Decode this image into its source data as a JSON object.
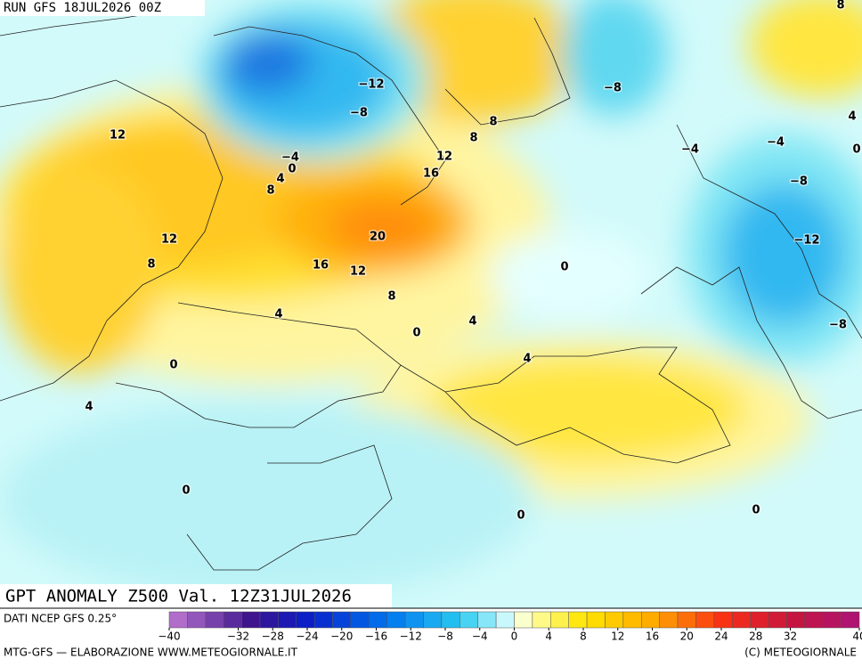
{
  "header": {
    "run": "RUN GFS 18JUL2026 00Z",
    "title": "GPT ANOMALY Z500 Val. 12Z31JUL2026"
  },
  "footer": {
    "source": "DATI NCEP GFS 0.25°",
    "credit": "MTG-GFS — ELABORAZIONE WWW.METEOGIORNALE.IT",
    "copyright": "(C) METEOGIORNALE"
  },
  "contour_labels": [
    "12",
    "−12",
    "−8",
    "−4",
    "0",
    "4",
    "8",
    "8",
    "8",
    "12",
    "16",
    "20",
    "12",
    "8",
    "16",
    "12",
    "8",
    "4",
    "4",
    "0",
    "0",
    "4",
    "0",
    "4",
    "0",
    "0",
    "0",
    "−8",
    "−4",
    "−4",
    "−8",
    "−12",
    "−8",
    "4",
    "8",
    "0"
  ],
  "colorbar": {
    "range": [
      -40,
      40
    ],
    "ticks": [
      {
        "value": -40,
        "label": "−40"
      },
      {
        "value": -32,
        "label": "−32"
      },
      {
        "value": -28,
        "label": "−28"
      },
      {
        "value": -24,
        "label": "−24"
      },
      {
        "value": -20,
        "label": "−20"
      },
      {
        "value": -16,
        "label": "−16"
      },
      {
        "value": -12,
        "label": "−12"
      },
      {
        "value": -8,
        "label": "−8"
      },
      {
        "value": -4,
        "label": "−4"
      },
      0,
      4,
      8,
      12,
      16,
      20,
      24,
      28,
      32,
      40
    ]
  }
}
